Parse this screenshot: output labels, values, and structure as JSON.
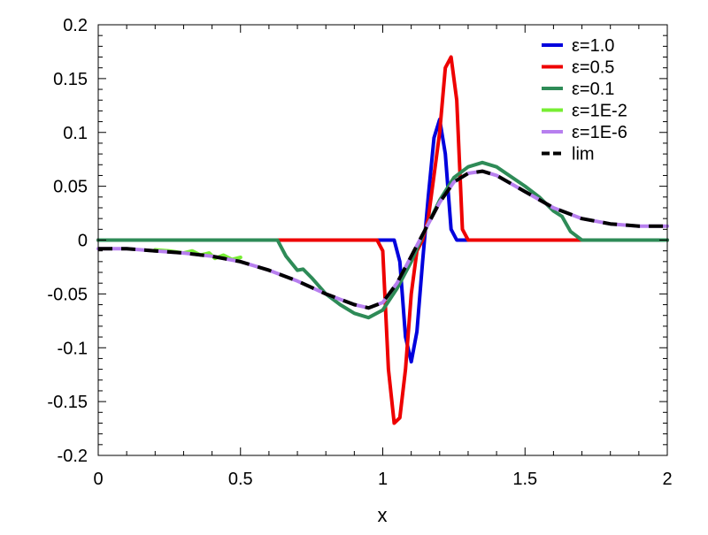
{
  "chart_data": {
    "type": "line",
    "title": "",
    "xlabel": "x",
    "ylabel": "",
    "xlim": [
      0,
      2
    ],
    "ylim": [
      -0.2,
      0.2
    ],
    "x_ticks": [
      0,
      0.5,
      1,
      1.5,
      2
    ],
    "x_tick_labels": [
      "0",
      "0.5",
      "1",
      "1.5",
      "2"
    ],
    "y_ticks": [
      -0.2,
      -0.15,
      -0.1,
      -0.05,
      0,
      0.05,
      0.1,
      0.15,
      0.2
    ],
    "y_tick_labels": [
      "-0.2",
      "-0.15",
      "-0.1",
      "-0.05",
      "0",
      "0.05",
      "0.1",
      "0.15",
      "0.2"
    ],
    "grid": false,
    "legend_position": "top-right",
    "series": [
      {
        "name": "ε=1.0",
        "color": "#0000dd",
        "dash": "solid",
        "x": [
          0,
          0.5,
          1.0,
          1.04,
          1.06,
          1.08,
          1.1,
          1.12,
          1.14,
          1.16,
          1.18,
          1.2,
          1.22,
          1.24,
          1.26,
          1.3,
          1.5,
          2.0
        ],
        "y": [
          0,
          0,
          0,
          0,
          -0.02,
          -0.09,
          -0.113,
          -0.085,
          -0.02,
          0.04,
          0.095,
          0.112,
          0.08,
          0.01,
          0,
          0,
          0,
          0
        ]
      },
      {
        "name": "ε=0.5",
        "color": "#ee0000",
        "dash": "solid",
        "x": [
          0,
          0.5,
          0.98,
          1.0,
          1.02,
          1.04,
          1.06,
          1.08,
          1.1,
          1.12,
          1.14,
          1.16,
          1.18,
          1.2,
          1.22,
          1.24,
          1.26,
          1.28,
          1.3,
          1.5,
          2.0
        ],
        "y": [
          0,
          0,
          0,
          -0.01,
          -0.12,
          -0.17,
          -0.165,
          -0.12,
          -0.05,
          -0.01,
          0,
          0.02,
          0.06,
          0.1,
          0.16,
          0.17,
          0.13,
          0.01,
          0,
          0,
          0
        ]
      },
      {
        "name": "ε=0.1",
        "color": "#2e8b57",
        "dash": "solid",
        "x": [
          0,
          0.5,
          0.63,
          0.66,
          0.7,
          0.72,
          0.75,
          0.8,
          0.85,
          0.9,
          0.95,
          1.0,
          1.05,
          1.1,
          1.15,
          1.2,
          1.25,
          1.3,
          1.35,
          1.4,
          1.5,
          1.55,
          1.6,
          1.63,
          1.66,
          1.7,
          1.8,
          2.0
        ],
        "y": [
          0,
          0,
          0,
          -0.015,
          -0.028,
          -0.027,
          -0.035,
          -0.05,
          -0.06,
          -0.068,
          -0.072,
          -0.065,
          -0.045,
          -0.02,
          0.01,
          0.037,
          0.058,
          0.068,
          0.072,
          0.068,
          0.05,
          0.04,
          0.027,
          0.022,
          0.008,
          0,
          0,
          0
        ]
      },
      {
        "name": "ε=1E-2",
        "color": "#77ee33",
        "dash": "solid",
        "x": [
          0.2,
          0.25,
          0.3,
          0.33,
          0.36,
          0.39,
          0.41,
          0.44,
          0.47,
          0.5
        ],
        "y": [
          -0.009,
          -0.01,
          -0.012,
          -0.01,
          -0.014,
          -0.012,
          -0.017,
          -0.014,
          -0.018,
          -0.016
        ]
      },
      {
        "name": "ε=1E-6",
        "color": "#b77fef",
        "dash": "solid",
        "x": [
          0,
          0.1,
          0.2,
          0.3,
          0.4,
          0.5,
          0.6,
          0.7,
          0.8,
          0.9,
          0.95,
          1.0,
          1.05,
          1.1,
          1.15,
          1.2,
          1.25,
          1.3,
          1.35,
          1.4,
          1.5,
          1.6,
          1.7,
          1.8,
          1.9,
          2.0
        ],
        "y": [
          -0.008,
          -0.008,
          -0.01,
          -0.012,
          -0.015,
          -0.02,
          -0.028,
          -0.038,
          -0.05,
          -0.06,
          -0.063,
          -0.058,
          -0.04,
          -0.015,
          0.01,
          0.035,
          0.054,
          0.062,
          0.064,
          0.06,
          0.045,
          0.03,
          0.02,
          0.015,
          0.013,
          0.013
        ]
      },
      {
        "name": "lim",
        "color": "#000000",
        "dash": "dashed",
        "x": [
          0,
          0.1,
          0.2,
          0.3,
          0.4,
          0.5,
          0.6,
          0.7,
          0.8,
          0.9,
          0.95,
          1.0,
          1.05,
          1.1,
          1.15,
          1.2,
          1.25,
          1.3,
          1.35,
          1.4,
          1.5,
          1.6,
          1.7,
          1.8,
          1.9,
          2.0
        ],
        "y": [
          -0.008,
          -0.008,
          -0.01,
          -0.012,
          -0.015,
          -0.02,
          -0.028,
          -0.038,
          -0.05,
          -0.06,
          -0.063,
          -0.058,
          -0.04,
          -0.015,
          0.01,
          0.035,
          0.054,
          0.062,
          0.064,
          0.06,
          0.045,
          0.03,
          0.02,
          0.015,
          0.013,
          0.013
        ]
      }
    ]
  }
}
